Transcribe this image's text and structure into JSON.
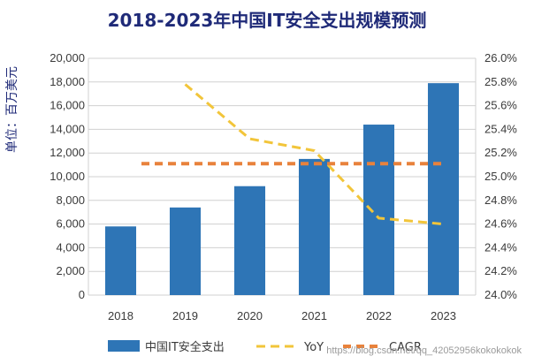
{
  "chart_data": {
    "type": "bar",
    "title": "2018-2023年中国IT安全支出规模预测",
    "ylabel": "单位：百万美元",
    "categories": [
      "2018",
      "2019",
      "2020",
      "2021",
      "2022",
      "2023"
    ],
    "ylim": [
      0,
      20000
    ],
    "y_ticks": [
      "0",
      "2,000",
      "4,000",
      "6,000",
      "8,000",
      "10,000",
      "12,000",
      "14,000",
      "16,000",
      "18,000",
      "20,000"
    ],
    "y2lim": [
      24.0,
      26.0
    ],
    "y2_ticks": [
      "24.0%",
      "24.2%",
      "24.4%",
      "24.6%",
      "24.8%",
      "25.0%",
      "25.2%",
      "25.4%",
      "25.6%",
      "25.8%",
      "26.0%"
    ],
    "series": [
      {
        "name": "中国IT安全支出",
        "kind": "bar",
        "axis": "left",
        "values": [
          5800,
          7400,
          9200,
          11500,
          14400,
          17900
        ]
      },
      {
        "name": "YoY",
        "kind": "line",
        "axis": "right",
        "values": [
          null,
          25.78,
          25.32,
          25.22,
          24.65,
          24.6
        ]
      },
      {
        "name": "CAGR",
        "kind": "line",
        "axis": "right",
        "values": [
          25.11,
          25.11,
          25.11,
          25.11,
          25.11,
          25.11
        ]
      }
    ],
    "legend_position": "bottom",
    "grid": true
  },
  "colors": {
    "title": "#1f2a78",
    "bar": "#2e75b6",
    "yoy": "#f2c53a",
    "cagr": "#e8823c",
    "grid": "#d0d0d0"
  },
  "watermark": "https://blog.csdn.net/qq_42052956kokokokok"
}
